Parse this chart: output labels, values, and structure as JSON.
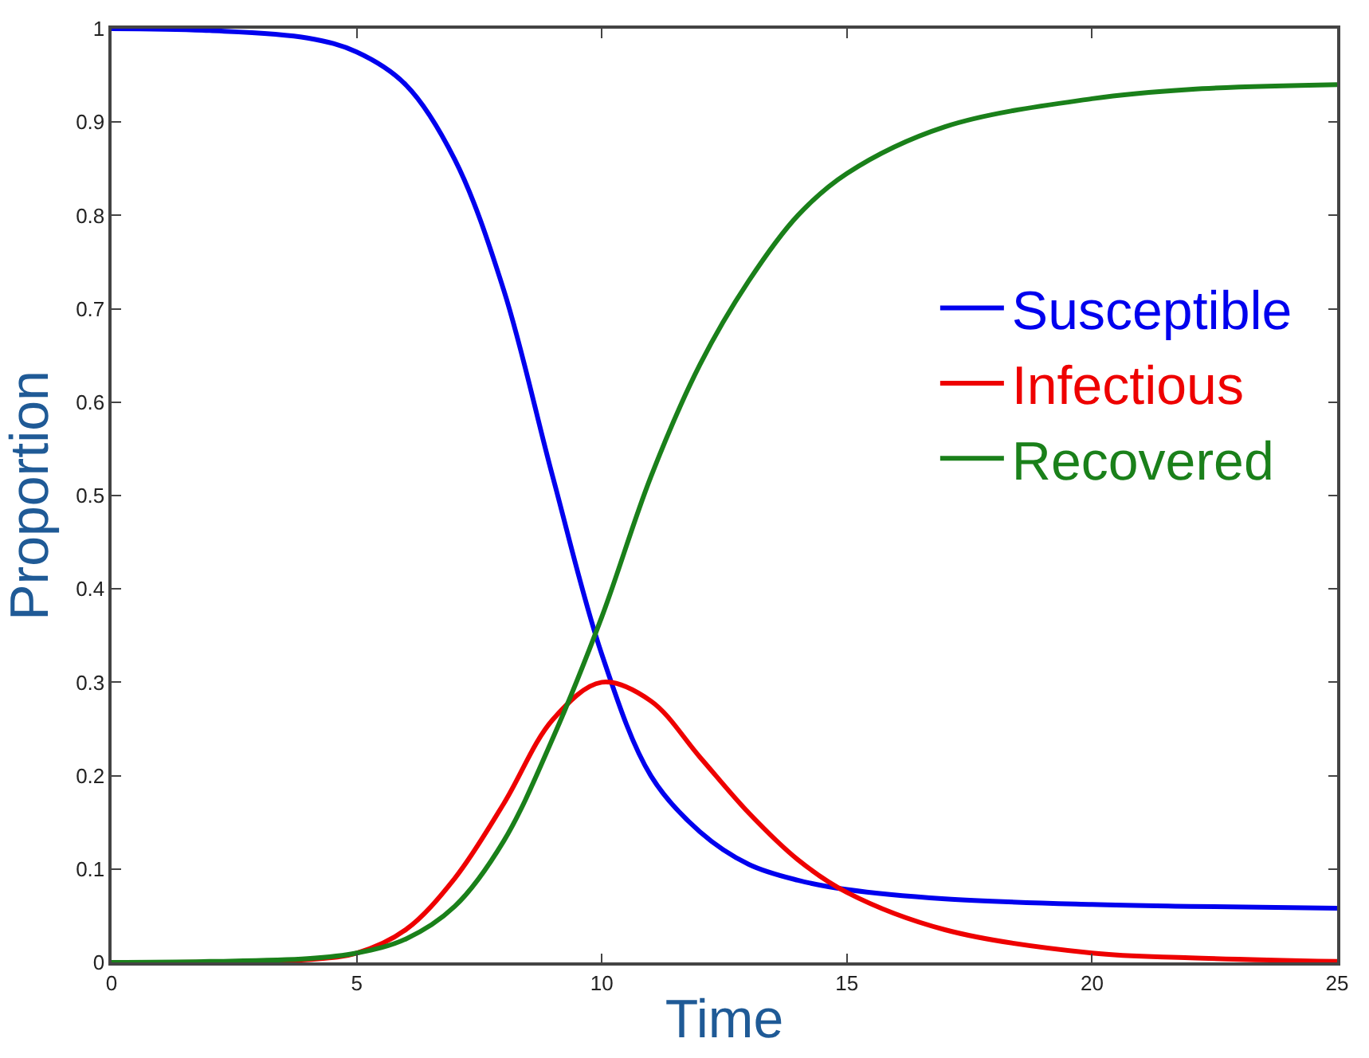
{
  "chart_data": {
    "type": "line",
    "xlabel": "Time",
    "ylabel": "Proportion",
    "xlim": [
      0,
      25
    ],
    "xticks": [
      0,
      5,
      10,
      15,
      20,
      25
    ],
    "ylim": [
      0,
      1
    ],
    "yticks": [
      0,
      0.1,
      0.2,
      0.3,
      0.4,
      0.5,
      0.6,
      0.7,
      0.8,
      0.9,
      1
    ],
    "x": [
      0,
      2,
      4,
      5,
      6,
      7,
      8,
      9,
      10,
      11,
      12,
      13,
      14,
      15,
      17,
      20,
      22,
      25
    ],
    "legend": "right",
    "marker": "none",
    "line_style": "solid",
    "series": [
      {
        "name": "Susceptible",
        "color": "#0000ee",
        "values": [
          1,
          0.998,
          0.99,
          0.975,
          0.94,
          0.86,
          0.72,
          0.52,
          0.33,
          0.2,
          0.14,
          0.105,
          0.088,
          0.078,
          0.068,
          0.062,
          0.06,
          0.058
        ]
      },
      {
        "name": "Infectious",
        "color": "#ee0000",
        "values": [
          0,
          null,
          0.003,
          0.01,
          0.035,
          0.09,
          0.17,
          0.26,
          0.3,
          0.28,
          0.22,
          0.16,
          0.11,
          0.075,
          0.035,
          0.01,
          0.005,
          0.001
        ]
      },
      {
        "name": "Recovered",
        "color": "#1a801a",
        "values": [
          0,
          0.001,
          0.004,
          0.01,
          0.025,
          0.06,
          0.13,
          0.24,
          0.37,
          0.52,
          0.64,
          0.73,
          0.8,
          0.845,
          0.895,
          0.925,
          0.935,
          0.94
        ]
      }
    ]
  }
}
